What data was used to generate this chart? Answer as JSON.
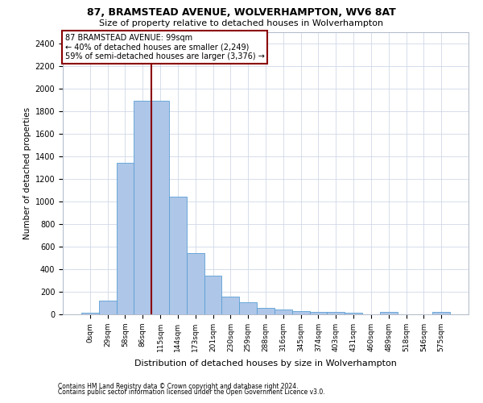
{
  "title1": "87, BRAMSTEAD AVENUE, WOLVERHAMPTON, WV6 8AT",
  "title2": "Size of property relative to detached houses in Wolverhampton",
  "xlabel": "Distribution of detached houses by size in Wolverhampton",
  "ylabel": "Number of detached properties",
  "footnote1": "Contains HM Land Registry data © Crown copyright and database right 2024.",
  "footnote2": "Contains public sector information licensed under the Open Government Licence v3.0.",
  "bar_values": [
    15,
    125,
    1340,
    1890,
    1890,
    1045,
    540,
    340,
    160,
    110,
    60,
    40,
    30,
    25,
    20,
    15,
    0,
    20,
    0,
    0,
    20
  ],
  "bar_labels": [
    "0sqm",
    "29sqm",
    "58sqm",
    "86sqm",
    "115sqm",
    "144sqm",
    "173sqm",
    "201sqm",
    "230sqm",
    "259sqm",
    "288sqm",
    "316sqm",
    "345sqm",
    "374sqm",
    "403sqm",
    "431sqm",
    "460sqm",
    "489sqm",
    "518sqm",
    "546sqm",
    "575sqm"
  ],
  "bar_color": "#aec6e8",
  "bar_edge_color": "#5a9fd4",
  "vline_x": 3.5,
  "vline_color": "#8b0000",
  "ylim": [
    0,
    2500
  ],
  "yticks": [
    0,
    200,
    400,
    600,
    800,
    1000,
    1200,
    1400,
    1600,
    1800,
    2000,
    2200,
    2400
  ],
  "annotation_line1": "87 BRAMSTEAD AVENUE: 99sqm",
  "annotation_line2": "← 40% of detached houses are smaller (2,249)",
  "annotation_line3": "59% of semi-detached houses are larger (3,376) →",
  "annotation_box_color": "#8b0000",
  "annotation_bg_color": "#ffffff",
  "bg_color": "#ffffff",
  "grid_color": "#d0d8e8",
  "title1_fontsize": 9,
  "title2_fontsize": 8,
  "ylabel_fontsize": 7.5,
  "xlabel_fontsize": 8,
  "tick_fontsize": 6.5,
  "annot_fontsize": 7,
  "footnote_fontsize": 5.5
}
